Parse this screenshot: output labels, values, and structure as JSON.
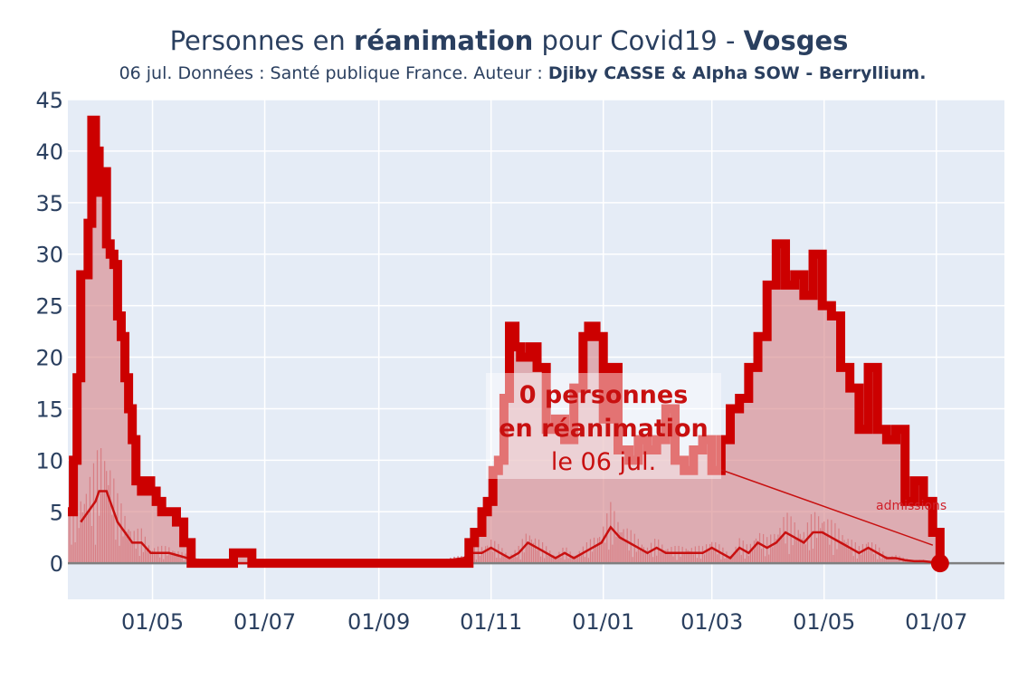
{
  "header": {
    "title_pre": "Personnes en ",
    "title_bold1": "réanimation",
    "title_mid": " pour Covid19 - ",
    "title_bold2": "Vosges",
    "subtitle_pre": "06 jul. Données : Santé publique France. Auteur : ",
    "subtitle_bold": "Djiby CASSE & Alpha SOW - Berryllium."
  },
  "annotation": {
    "line1": "0 personnes",
    "line2": "en réanimation",
    "line3": "le 06 jul.",
    "admissions_label": "admissions"
  },
  "colors": {
    "line": "#cc0000",
    "fill": "#d98a8e",
    "plot_bg": "#e5ecf6",
    "grid": "#ffffff",
    "zero": "#7f7f7f"
  },
  "chart_data": {
    "type": "area",
    "title": "Personnes en réanimation pour Covid19 - Vosges",
    "xlabel": "",
    "ylabel": "",
    "ylim": [
      -3.5,
      45
    ],
    "yticks": [
      0,
      5,
      10,
      15,
      20,
      25,
      30,
      35,
      40,
      45
    ],
    "x_ticks": [
      {
        "label": "01/05",
        "day": 31
      },
      {
        "label": "01/07",
        "day": 92
      },
      {
        "label": "01/09",
        "day": 154
      },
      {
        "label": "01/11",
        "day": 215
      },
      {
        "label": "01/01",
        "day": 276
      },
      {
        "label": "01/03",
        "day": 335
      },
      {
        "label": "01/05",
        "day": 396
      },
      {
        "label": "01/07",
        "day": 457
      }
    ],
    "xlim_days": [
      -15,
      494
    ],
    "x_origin": "2020-04-01",
    "series": [
      {
        "name": "réanimations",
        "days": [
          -15,
          -12,
          -10,
          -8,
          -6,
          -4,
          -2,
          0,
          2,
          4,
          6,
          8,
          10,
          12,
          14,
          16,
          18,
          20,
          22,
          25,
          28,
          30,
          33,
          36,
          40,
          44,
          48,
          52,
          56,
          60,
          65,
          70,
          75,
          80,
          85,
          90,
          95,
          100,
          110,
          140,
          160,
          175,
          200,
          203,
          206,
          210,
          213,
          216,
          219,
          222,
          225,
          228,
          231,
          236,
          240,
          245,
          250,
          255,
          260,
          265,
          268,
          272,
          276,
          280,
          284,
          290,
          295,
          300,
          305,
          310,
          315,
          320,
          325,
          330,
          335,
          340,
          345,
          350,
          355,
          360,
          365,
          370,
          375,
          380,
          385,
          390,
          395,
          400,
          405,
          410,
          415,
          420,
          425,
          430,
          435,
          440,
          445,
          450,
          455,
          459
        ],
        "values": [
          5,
          10,
          18,
          28,
          28,
          33,
          43,
          40,
          36,
          38,
          31,
          30,
          29,
          24,
          22,
          18,
          15,
          12,
          8,
          7,
          8,
          7,
          6,
          5,
          5,
          4,
          2,
          0,
          0,
          0,
          0,
          0,
          1,
          1,
          0,
          0,
          0,
          0,
          0,
          0,
          0,
          0,
          0,
          2,
          3,
          5,
          6,
          9,
          10,
          16,
          23,
          21,
          20,
          21,
          19,
          13,
          14,
          12,
          17,
          22,
          23,
          22,
          14,
          19,
          11,
          10,
          12,
          11,
          12,
          15,
          10,
          9,
          11,
          12,
          9,
          12,
          15,
          16,
          19,
          22,
          27,
          31,
          27,
          28,
          26,
          30,
          25,
          24,
          19,
          17,
          13,
          19,
          13,
          12,
          13,
          6,
          8,
          6,
          3,
          0
        ]
      },
      {
        "name": "admissions",
        "days": [
          -8,
          -4,
          0,
          2,
          4,
          6,
          8,
          12,
          16,
          20,
          25,
          30,
          40,
          50,
          60,
          70,
          80,
          90,
          140,
          180,
          200,
          205,
          210,
          215,
          220,
          225,
          230,
          235,
          240,
          245,
          250,
          255,
          260,
          265,
          270,
          275,
          280,
          285,
          290,
          295,
          300,
          305,
          310,
          315,
          320,
          325,
          330,
          335,
          340,
          345,
          350,
          355,
          360,
          365,
          370,
          375,
          380,
          385,
          390,
          395,
          400,
          405,
          410,
          415,
          420,
          425,
          430,
          435,
          440,
          445,
          450,
          455,
          459
        ],
        "values": [
          4,
          5,
          6,
          7,
          7,
          7,
          6,
          4,
          3,
          2,
          2,
          1,
          1,
          0.5,
          0.2,
          0,
          0,
          0,
          0,
          0,
          0.5,
          1,
          1,
          1.5,
          1,
          0.5,
          1,
          2,
          1.5,
          1,
          0.5,
          1,
          0.5,
          1,
          1.5,
          2,
          3.5,
          2.5,
          2,
          1.5,
          1,
          1.5,
          1,
          1,
          1,
          1,
          1,
          1.5,
          1,
          0.5,
          1.5,
          1,
          2,
          1.5,
          2,
          3,
          2.5,
          2,
          3,
          3,
          2.5,
          2,
          1.5,
          1,
          1.5,
          1,
          0.5,
          0.5,
          0.3,
          0.2,
          0.2,
          0.1,
          0
        ]
      }
    ]
  }
}
